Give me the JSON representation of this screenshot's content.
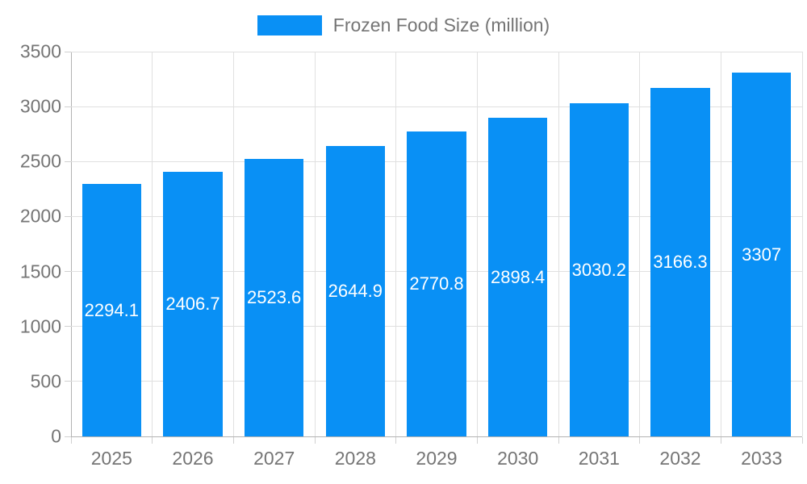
{
  "chart_data": {
    "type": "bar",
    "title": "Frozen Food Size (million)",
    "categories": [
      "2025",
      "2026",
      "2027",
      "2028",
      "2029",
      "2030",
      "2031",
      "2032",
      "2033"
    ],
    "values": [
      2294.1,
      2406.7,
      2523.6,
      2644.9,
      2770.8,
      2898.4,
      3030.2,
      3166.3,
      3307
    ],
    "value_labels": [
      "2294.1",
      "2406.7",
      "2523.6",
      "2644.9",
      "2770.8",
      "2898.4",
      "3030.2",
      "3166.3",
      "3307"
    ],
    "xlabel": "",
    "ylabel": "",
    "ylim": [
      0,
      3500
    ],
    "y_ticks": [
      0,
      500,
      1000,
      1500,
      2000,
      2500,
      3000,
      3500
    ],
    "grid": true,
    "legend_position": "top",
    "colors": {
      "bar": "#0990f5",
      "grid": "#e0e0e0",
      "axis": "#b3b3b3",
      "tick_text": "#757575",
      "value_label": "#ffffff",
      "background": "#ffffff"
    }
  }
}
